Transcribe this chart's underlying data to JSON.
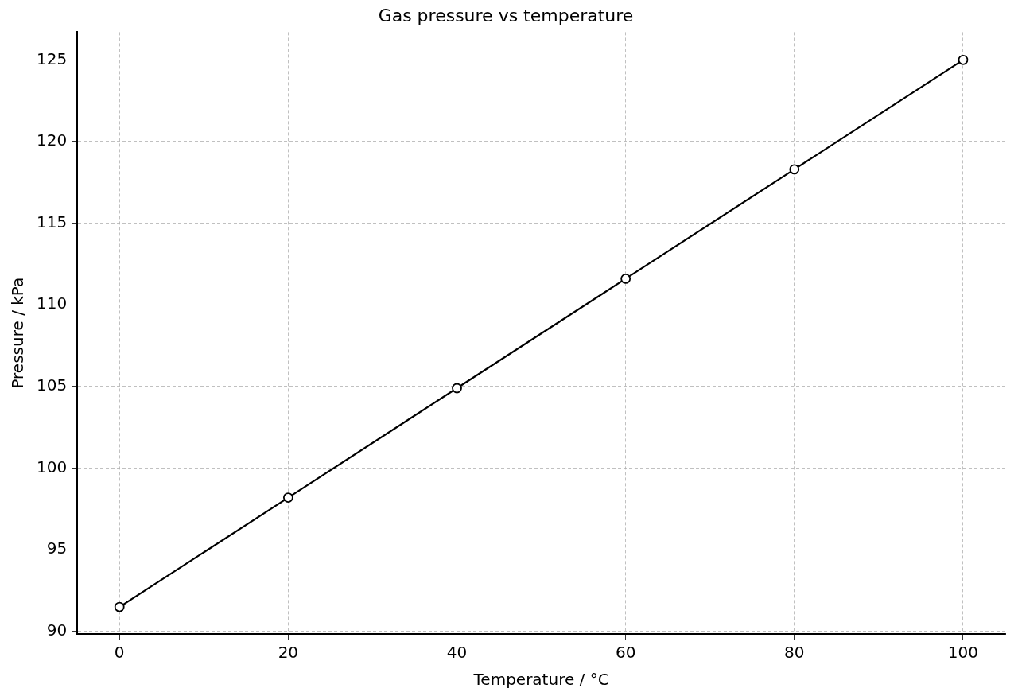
{
  "chart_data": {
    "type": "line",
    "title": "Gas pressure vs temperature",
    "xlabel": "Temperature / °C",
    "ylabel": "Pressure / kPa",
    "x": [
      0,
      20,
      40,
      60,
      80,
      100
    ],
    "series": [
      {
        "color": "#000000",
        "values": [
          91.5,
          98.2,
          104.9,
          111.6,
          118.3,
          125.0
        ]
      }
    ],
    "xlim": [
      -5,
      105
    ],
    "ylim": [
      89.85,
      126.7
    ],
    "xticks": [
      0,
      20,
      40,
      60,
      80,
      100
    ],
    "yticks": [
      90,
      95,
      100,
      105,
      110,
      115,
      120,
      125
    ],
    "grid": true,
    "legend": false,
    "marker": "circle",
    "line_style": "solid"
  }
}
